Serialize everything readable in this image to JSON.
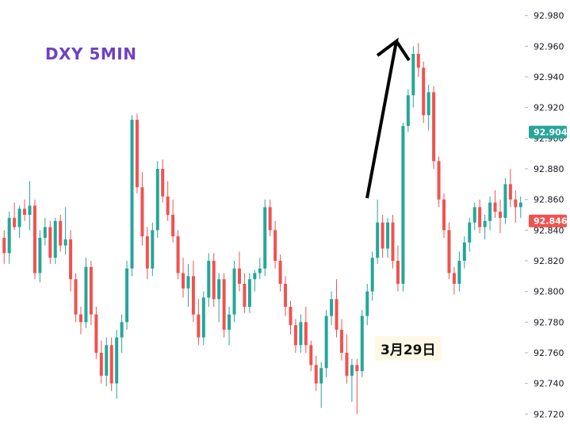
{
  "title": "DXY 5MIN",
  "annotation": "3月29日",
  "price_tags": {
    "upper": {
      "value": "92.904",
      "color": "#26a69a"
    },
    "lower": {
      "value": "92.846",
      "color": "#ef5350"
    }
  },
  "colors": {
    "up": "#26a69a",
    "down": "#ef5350",
    "title": "#6f42c1",
    "arrow": "#000000"
  },
  "chart_data": {
    "type": "candlestick",
    "title": "DXY 5MIN",
    "y_ticks": [
      "92.980",
      "92.960",
      "92.940",
      "92.920",
      "92.900",
      "92.880",
      "92.860",
      "92.840",
      "92.820",
      "92.800",
      "92.780",
      "92.760",
      "92.740",
      "92.720"
    ],
    "ylim": [
      92.715,
      92.985
    ],
    "grid": false,
    "candles": [
      [
        92.835,
        92.84,
        92.818,
        92.825
      ],
      [
        92.825,
        92.852,
        92.818,
        92.848
      ],
      [
        92.848,
        92.858,
        92.84,
        92.842
      ],
      [
        92.842,
        92.856,
        92.835,
        92.854
      ],
      [
        92.854,
        92.86,
        92.846,
        92.85
      ],
      [
        92.85,
        92.872,
        92.84,
        92.856
      ],
      [
        92.856,
        92.86,
        92.808,
        92.812
      ],
      [
        92.812,
        92.84,
        92.806,
        92.835
      ],
      [
        92.835,
        92.848,
        92.83,
        92.842
      ],
      [
        92.842,
        92.846,
        92.818,
        92.822
      ],
      [
        92.822,
        92.848,
        92.818,
        92.846
      ],
      [
        92.846,
        92.85,
        92.826,
        92.83
      ],
      [
        92.83,
        92.855,
        92.824,
        92.834
      ],
      [
        92.834,
        92.84,
        92.8,
        92.808
      ],
      [
        92.808,
        92.812,
        92.78,
        92.785
      ],
      [
        92.785,
        92.79,
        92.772,
        92.78
      ],
      [
        92.78,
        92.822,
        92.776,
        92.816
      ],
      [
        92.816,
        92.82,
        92.778,
        92.785
      ],
      [
        92.785,
        92.79,
        92.756,
        92.76
      ],
      [
        92.76,
        92.768,
        92.74,
        92.745
      ],
      [
        92.745,
        92.77,
        92.738,
        92.765
      ],
      [
        92.765,
        92.77,
        92.735,
        92.74
      ],
      [
        92.74,
        92.775,
        92.73,
        92.77
      ],
      [
        92.77,
        92.785,
        92.76,
        92.78
      ],
      [
        92.78,
        92.82,
        92.775,
        92.815
      ],
      [
        92.815,
        92.915,
        92.81,
        92.912
      ],
      [
        92.912,
        92.916,
        92.864,
        92.868
      ],
      [
        92.868,
        92.878,
        92.83,
        92.836
      ],
      [
        92.836,
        92.842,
        92.808,
        92.815
      ],
      [
        92.815,
        92.845,
        92.81,
        92.84
      ],
      [
        92.84,
        92.885,
        92.835,
        92.88
      ],
      [
        92.88,
        92.886,
        92.858,
        92.862
      ],
      [
        92.862,
        92.872,
        92.846,
        92.85
      ],
      [
        92.85,
        92.86,
        92.832,
        92.836
      ],
      [
        92.836,
        92.84,
        92.808,
        92.812
      ],
      [
        92.812,
        92.822,
        92.796,
        92.802
      ],
      [
        92.802,
        92.818,
        92.79,
        92.81
      ],
      [
        92.81,
        92.82,
        92.78,
        92.785
      ],
      [
        92.785,
        92.795,
        92.765,
        92.77
      ],
      [
        92.77,
        92.8,
        92.765,
        92.796
      ],
      [
        92.796,
        92.825,
        92.79,
        92.82
      ],
      [
        92.82,
        92.825,
        92.79,
        92.795
      ],
      [
        92.795,
        92.812,
        92.78,
        92.808
      ],
      [
        92.808,
        92.812,
        92.77,
        92.775
      ],
      [
        92.775,
        92.79,
        92.765,
        92.785
      ],
      [
        92.785,
        92.82,
        92.78,
        92.815
      ],
      [
        92.815,
        92.826,
        92.8,
        92.805
      ],
      [
        92.805,
        92.812,
        92.786,
        92.79
      ],
      [
        92.79,
        92.812,
        92.786,
        92.808
      ],
      [
        92.808,
        92.814,
        92.8,
        92.812
      ],
      [
        92.812,
        92.822,
        92.808,
        92.815
      ],
      [
        92.815,
        92.86,
        92.81,
        92.855
      ],
      [
        92.855,
        92.86,
        92.836,
        92.84
      ],
      [
        92.84,
        92.846,
        92.815,
        92.82
      ],
      [
        92.82,
        92.824,
        92.8,
        92.805
      ],
      [
        92.805,
        92.81,
        92.784,
        92.79
      ],
      [
        92.79,
        92.794,
        92.772,
        92.778
      ],
      [
        92.778,
        92.782,
        92.76,
        92.765
      ],
      [
        92.765,
        92.785,
        92.76,
        92.78
      ],
      [
        92.78,
        92.79,
        92.76,
        92.765
      ],
      [
        92.765,
        92.768,
        92.748,
        92.752
      ],
      [
        92.752,
        92.758,
        92.735,
        92.74
      ],
      [
        92.74,
        92.754,
        92.724,
        92.75
      ],
      [
        92.75,
        92.788,
        92.744,
        92.784
      ],
      [
        92.784,
        92.8,
        92.778,
        92.795
      ],
      [
        92.795,
        92.808,
        92.77,
        92.775
      ],
      [
        92.775,
        92.782,
        92.755,
        92.76
      ],
      [
        92.76,
        92.772,
        92.74,
        92.745
      ],
      [
        92.745,
        92.756,
        92.728,
        92.752
      ],
      [
        92.752,
        92.756,
        92.72,
        92.748
      ],
      [
        92.748,
        92.788,
        92.744,
        92.784
      ],
      [
        92.784,
        92.805,
        92.778,
        92.8
      ],
      [
        92.8,
        92.826,
        92.794,
        92.822
      ],
      [
        92.822,
        92.86,
        92.818,
        92.845
      ],
      [
        92.845,
        92.85,
        92.822,
        92.828
      ],
      [
        92.828,
        92.848,
        92.822,
        92.845
      ],
      [
        92.845,
        92.85,
        92.815,
        92.82
      ],
      [
        92.82,
        92.83,
        92.8,
        92.805
      ],
      [
        92.805,
        92.91,
        92.8,
        92.908
      ],
      [
        92.908,
        92.932,
        92.904,
        92.928
      ],
      [
        92.928,
        92.96,
        92.92,
        92.955
      ],
      [
        92.955,
        92.962,
        92.94,
        92.946
      ],
      [
        92.946,
        92.95,
        92.91,
        92.915
      ],
      [
        92.915,
        92.935,
        92.905,
        92.93
      ],
      [
        92.93,
        92.934,
        92.88,
        92.885
      ],
      [
        92.885,
        92.888,
        92.855,
        92.86
      ],
      [
        92.86,
        92.864,
        92.835,
        92.84
      ],
      [
        92.84,
        92.845,
        92.808,
        92.812
      ],
      [
        92.812,
        92.816,
        92.798,
        92.805
      ],
      [
        92.805,
        92.826,
        92.8,
        92.82
      ],
      [
        92.82,
        92.836,
        92.815,
        92.832
      ],
      [
        92.832,
        92.848,
        92.826,
        92.845
      ],
      [
        92.845,
        92.858,
        92.84,
        92.855
      ],
      [
        92.855,
        92.86,
        92.838,
        92.842
      ],
      [
        92.842,
        92.85,
        92.834,
        92.846
      ],
      [
        92.846,
        92.862,
        92.84,
        92.858
      ],
      [
        92.858,
        92.866,
        92.848,
        92.852
      ],
      [
        92.852,
        92.86,
        92.838,
        92.848
      ],
      [
        92.848,
        92.874,
        92.844,
        92.87
      ],
      [
        92.87,
        92.88,
        92.855,
        92.86
      ],
      [
        92.86,
        92.866,
        92.845,
        92.855
      ],
      [
        92.855,
        92.862,
        92.848,
        92.858
      ]
    ]
  }
}
